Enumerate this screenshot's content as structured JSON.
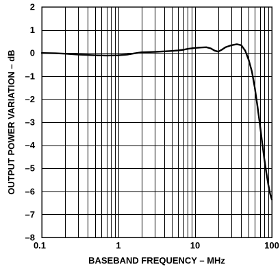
{
  "chart_data": {
    "type": "line",
    "title": "",
    "xlabel": "BASEBAND FREQUENCY – MHz",
    "ylabel": "OUTPUT POWER VARIATION – dB",
    "x_scale": "log",
    "xlim": [
      0.1,
      100
    ],
    "ylim": [
      -8,
      2
    ],
    "grid": true,
    "legend": "none",
    "x_tick_labels": [
      "0.1",
      "1",
      "10",
      "100"
    ],
    "x_ticks": [
      0.1,
      1,
      10,
      100
    ],
    "y_tick_labels": [
      "2",
      "1",
      "0",
      "–1",
      "–2",
      "–3",
      "–4",
      "–5",
      "–6",
      "–7",
      "–8"
    ],
    "y_ticks": [
      2,
      1,
      0,
      -1,
      -2,
      -3,
      -4,
      -5,
      -6,
      -7,
      -8
    ],
    "series": [
      {
        "x": [
          0.1,
          0.15,
          0.2,
          0.3,
          0.5,
          0.7,
          1.0,
          1.3,
          1.6,
          2.0,
          3.0,
          4.0,
          5.0,
          6.0,
          7.0,
          8.0,
          10.0,
          12.0,
          14.0,
          16.0,
          18.0,
          20.0,
          22.0,
          25.0,
          30.0,
          35.0,
          40.0,
          45.0,
          50.0,
          55.0,
          60.0,
          65.0,
          70.0,
          75.0,
          80.0,
          85.0,
          90.0,
          95.0,
          100.0
        ],
        "y": [
          0.0,
          -0.01,
          -0.03,
          -0.07,
          -0.1,
          -0.11,
          -0.1,
          -0.07,
          -0.02,
          0.03,
          0.05,
          0.07,
          0.09,
          0.11,
          0.14,
          0.18,
          0.22,
          0.24,
          0.25,
          0.2,
          0.1,
          0.06,
          0.13,
          0.25,
          0.34,
          0.38,
          0.34,
          0.1,
          -0.3,
          -0.8,
          -1.5,
          -2.3,
          -3.1,
          -3.9,
          -4.6,
          -5.2,
          -5.7,
          -6.1,
          -6.35
        ]
      }
    ]
  }
}
